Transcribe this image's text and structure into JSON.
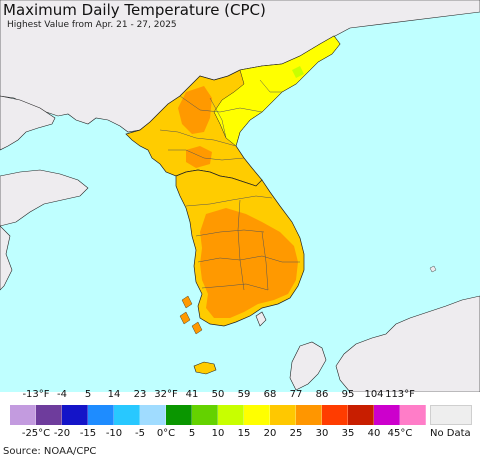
{
  "header": {
    "title": "Maximum Daily Temperature (CPC)",
    "subtitle": "Highest Value from Apr. 21 - 27, 2025"
  },
  "map": {
    "region": "Korean Peninsula",
    "ocean_color": "#bfffff",
    "land_nodata_color": "#eeecef",
    "regions": [
      {
        "name": "North Korea northeast",
        "category": "15 to 20 °C",
        "color": "#ffff00"
      },
      {
        "name": "North Korea west",
        "category": "20 to 25 °C",
        "color": "#ffcc00"
      },
      {
        "name": "North Korea interior",
        "category": "25 to 30 °C",
        "color": "#ff9900"
      },
      {
        "name": "South Korea",
        "category": "25 to 30 °C",
        "color": "#ff9900"
      },
      {
        "name": "Jeju",
        "category": "20 to 25 °C",
        "color": "#ffcc00"
      }
    ]
  },
  "legend": {
    "f_ticks": [
      "-13°F",
      "-4",
      "5",
      "14",
      "23",
      "32°F",
      "41",
      "50",
      "59",
      "68",
      "77",
      "86",
      "95",
      "104",
      "113°F"
    ],
    "c_ticks": [
      "-25°C",
      "-20",
      "-15",
      "-10",
      "-5",
      "0°C",
      "5",
      "10",
      "15",
      "20",
      "25",
      "30",
      "35",
      "40",
      "45°C"
    ],
    "colors": [
      "#c39bdf",
      "#6e3c9c",
      "#1414c8",
      "#1e8cff",
      "#28c8ff",
      "#a0dcff",
      "#0a9600",
      "#64d200",
      "#c8ff00",
      "#ffff00",
      "#ffc800",
      "#ff9600",
      "#ff3c00",
      "#c81e00",
      "#cc00cc",
      "#ff7dc8"
    ],
    "nodata_label": "No Data",
    "nodata_color": "#eeeeee"
  },
  "source": "Source: NOAA/CPC"
}
